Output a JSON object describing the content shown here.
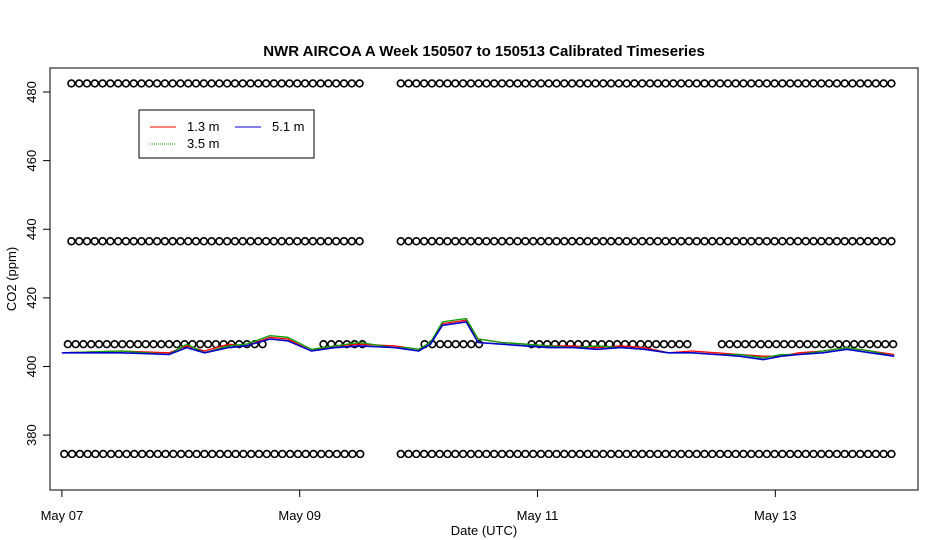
{
  "chart_data": {
    "type": "line",
    "title": "NWR AIRCOA A  Week 150507 to 150513  Calibrated Timeseries",
    "xlabel": "Date (UTC)",
    "ylabel": "CO2 (ppm)",
    "x_unit": "days since May 07 00:00 UTC",
    "xlim": [
      -0.1,
      7.2
    ],
    "ylim": [
      364,
      487
    ],
    "x_ticks": [
      {
        "x": 0,
        "label": "May 07"
      },
      {
        "x": 2,
        "label": "May 09"
      },
      {
        "x": 4,
        "label": "May 11"
      },
      {
        "x": 6,
        "label": "May 13"
      }
    ],
    "y_ticks": [
      {
        "y": 380,
        "label": "380"
      },
      {
        "y": 400,
        "label": "400"
      },
      {
        "y": 420,
        "label": "420"
      },
      {
        "y": 440,
        "label": "440"
      },
      {
        "y": 460,
        "label": "460"
      },
      {
        "y": 480,
        "label": "480"
      }
    ],
    "grid": false,
    "legend": {
      "placement": "top-left",
      "entries": [
        {
          "name": "1.3 m",
          "color": "#ff0000"
        },
        {
          "name": "3.5 m",
          "color": "#00a000"
        },
        {
          "name": "5.1 m",
          "color": "#0000cc"
        }
      ]
    },
    "series": [
      {
        "name": "1.3 m",
        "color": "#ff0000",
        "x": [
          0,
          0.5,
          0.9,
          1.05,
          1.2,
          1.4,
          1.55,
          1.75,
          1.9,
          2.1,
          2.3,
          2.5,
          2.8,
          2.9,
          3.0,
          3.1,
          3.2,
          3.4,
          3.5,
          3.7,
          3.9,
          4.1,
          4.3,
          4.5,
          4.7,
          4.9,
          5.1,
          5.3,
          5.5,
          5.7,
          5.9,
          6.05,
          6.2,
          6.4,
          6.6,
          6.8,
          7.0
        ],
        "y": [
          404,
          404.5,
          404,
          406,
          404.5,
          406.5,
          406,
          408.5,
          408,
          404.5,
          406,
          406.5,
          406,
          405.5,
          405,
          407,
          412.5,
          413.5,
          408,
          407,
          406.5,
          406,
          406,
          405.5,
          406,
          405.5,
          404,
          404.5,
          404,
          403.5,
          403,
          403,
          404,
          404.5,
          405.5,
          404.5,
          403.5
        ]
      },
      {
        "name": "3.5 m",
        "color": "#00a000",
        "x": [
          0,
          0.5,
          0.9,
          1.05,
          1.2,
          1.4,
          1.55,
          1.75,
          1.9,
          2.1,
          2.3,
          2.5,
          2.8,
          2.9,
          3.0,
          3.1,
          3.2,
          3.4,
          3.5,
          3.7,
          3.9,
          4.1,
          4.3,
          4.5,
          4.7,
          4.9,
          5.1,
          5.3,
          5.5,
          5.7,
          5.9,
          6.05,
          6.2,
          6.4,
          6.6,
          6.8,
          7.0
        ],
        "y": [
          404,
          404.5,
          403.5,
          406.5,
          404,
          406,
          406.5,
          409,
          408.5,
          405,
          406,
          407,
          405.5,
          405.5,
          405,
          407,
          413,
          414,
          408,
          407,
          406.5,
          406,
          405.5,
          406,
          405.5,
          405,
          404,
          404,
          403.5,
          403.5,
          402.5,
          403.5,
          403.5,
          404.5,
          405.5,
          404.5,
          403
        ]
      },
      {
        "name": "5.1 m",
        "color": "#0000cc",
        "x": [
          0,
          0.5,
          0.9,
          1.05,
          1.2,
          1.4,
          1.55,
          1.75,
          1.9,
          2.1,
          2.3,
          2.5,
          2.8,
          2.9,
          3.0,
          3.1,
          3.2,
          3.4,
          3.5,
          3.7,
          3.9,
          4.1,
          4.3,
          4.5,
          4.7,
          4.9,
          5.1,
          5.3,
          5.5,
          5.7,
          5.9,
          6.05,
          6.2,
          6.4,
          6.6,
          6.8,
          7.0
        ],
        "y": [
          404,
          404,
          403.5,
          405.5,
          404,
          405.5,
          406,
          408,
          407.5,
          404.5,
          405.5,
          406,
          405.5,
          405,
          404.5,
          406.5,
          412,
          413,
          407,
          406.5,
          406,
          405.5,
          405.5,
          405,
          405.5,
          405,
          404,
          404,
          403.5,
          403,
          402,
          403,
          403.5,
          404,
          405,
          404,
          403
        ]
      }
    ],
    "flag_levels": [
      {
        "y": 482.5,
        "segments": [
          [
            0.08,
            2.55
          ],
          [
            2.85,
            7.0
          ]
        ]
      },
      {
        "y": 436.5,
        "segments": [
          [
            0.08,
            2.55
          ],
          [
            2.85,
            7.0
          ]
        ]
      },
      {
        "y": 406.5,
        "segments": [
          [
            0.05,
            1.75
          ],
          [
            2.2,
            2.55
          ],
          [
            3.05,
            3.55
          ],
          [
            3.95,
            5.3
          ],
          [
            5.55,
            7.0
          ]
        ]
      },
      {
        "y": 374.5,
        "segments": [
          [
            0.02,
            2.55
          ],
          [
            2.85,
            7.0
          ]
        ]
      }
    ],
    "flag_spacing_days": 0.0655
  }
}
